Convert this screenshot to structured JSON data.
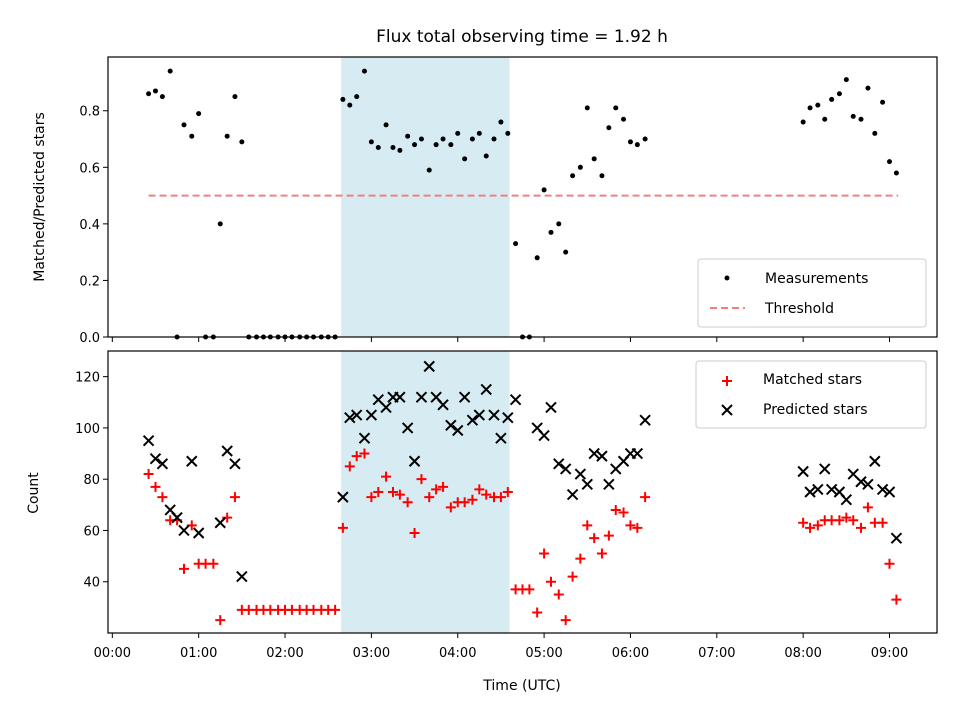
{
  "chart_data": [
    {
      "type": "scatter",
      "title": "Flux total observing time = 1.92 h",
      "ylabel": "Matched/Predicted stars",
      "xlabel": "",
      "xlim": [
        -0.05,
        9.55
      ],
      "ylim": [
        0,
        0.99
      ],
      "yticks": [
        0.0,
        0.2,
        0.4,
        0.6,
        0.8
      ],
      "ytick_labels": [
        "0.0",
        "0.2",
        "0.4",
        "0.6",
        "0.8"
      ],
      "shaded_span": [
        2.65,
        4.6
      ],
      "grid": false,
      "legend": "bottom-right",
      "threshold": {
        "name": "Threshold",
        "value": 0.5,
        "x_range": [
          0.42,
          9.1
        ],
        "color": "#f08080"
      },
      "series": [
        {
          "name": "Measurements",
          "color": "#000000",
          "points": [
            [
              0.42,
              0.86
            ],
            [
              0.5,
              0.87
            ],
            [
              0.58,
              0.85
            ],
            [
              0.67,
              0.94
            ],
            [
              0.75,
              0.0
            ],
            [
              0.83,
              0.75
            ],
            [
              0.92,
              0.71
            ],
            [
              1.0,
              0.79
            ],
            [
              1.08,
              0.0
            ],
            [
              1.17,
              0.0
            ],
            [
              1.25,
              0.4
            ],
            [
              1.33,
              0.71
            ],
            [
              1.42,
              0.85
            ],
            [
              1.5,
              0.69
            ],
            [
              1.58,
              0.0
            ],
            [
              1.67,
              0.0
            ],
            [
              1.75,
              0.0
            ],
            [
              1.83,
              0.0
            ],
            [
              1.92,
              0.0
            ],
            [
              2.0,
              0.0
            ],
            [
              2.08,
              0.0
            ],
            [
              2.17,
              0.0
            ],
            [
              2.25,
              0.0
            ],
            [
              2.33,
              0.0
            ],
            [
              2.42,
              0.0
            ],
            [
              2.5,
              0.0
            ],
            [
              2.58,
              0.0
            ],
            [
              2.67,
              0.84
            ],
            [
              2.75,
              0.82
            ],
            [
              2.83,
              0.85
            ],
            [
              2.92,
              0.94
            ],
            [
              3.0,
              0.69
            ],
            [
              3.08,
              0.67
            ],
            [
              3.17,
              0.75
            ],
            [
              3.25,
              0.67
            ],
            [
              3.33,
              0.66
            ],
            [
              3.42,
              0.71
            ],
            [
              3.5,
              0.68
            ],
            [
              3.58,
              0.7
            ],
            [
              3.67,
              0.59
            ],
            [
              3.75,
              0.68
            ],
            [
              3.83,
              0.7
            ],
            [
              3.92,
              0.68
            ],
            [
              4.0,
              0.72
            ],
            [
              4.08,
              0.63
            ],
            [
              4.17,
              0.7
            ],
            [
              4.25,
              0.72
            ],
            [
              4.33,
              0.64
            ],
            [
              4.42,
              0.7
            ],
            [
              4.5,
              0.76
            ],
            [
              4.58,
              0.72
            ],
            [
              4.67,
              0.33
            ],
            [
              4.75,
              0.0
            ],
            [
              4.83,
              0.0
            ],
            [
              4.92,
              0.28
            ],
            [
              5.0,
              0.52
            ],
            [
              5.08,
              0.37
            ],
            [
              5.17,
              0.4
            ],
            [
              5.25,
              0.3
            ],
            [
              5.33,
              0.57
            ],
            [
              5.42,
              0.6
            ],
            [
              5.5,
              0.81
            ],
            [
              5.58,
              0.63
            ],
            [
              5.67,
              0.57
            ],
            [
              5.75,
              0.74
            ],
            [
              5.83,
              0.81
            ],
            [
              5.92,
              0.77
            ],
            [
              6.0,
              0.69
            ],
            [
              6.08,
              0.68
            ],
            [
              6.17,
              0.7
            ],
            [
              8.0,
              0.76
            ],
            [
              8.08,
              0.81
            ],
            [
              8.17,
              0.82
            ],
            [
              8.25,
              0.77
            ],
            [
              8.33,
              0.84
            ],
            [
              8.42,
              0.86
            ],
            [
              8.5,
              0.91
            ],
            [
              8.58,
              0.78
            ],
            [
              8.67,
              0.77
            ],
            [
              8.75,
              0.88
            ],
            [
              8.83,
              0.72
            ],
            [
              8.92,
              0.83
            ],
            [
              9.0,
              0.62
            ],
            [
              9.08,
              0.58
            ]
          ]
        }
      ]
    },
    {
      "type": "scatter",
      "title": "",
      "ylabel": "Count",
      "xlabel": "Time (UTC)",
      "xlim": [
        -0.05,
        9.55
      ],
      "ylim": [
        20,
        130
      ],
      "yticks": [
        40,
        60,
        80,
        100,
        120
      ],
      "ytick_labels": [
        "40",
        "60",
        "80",
        "100",
        "120"
      ],
      "xticks": [
        0,
        1,
        2,
        3,
        4,
        5,
        6,
        7,
        8,
        9
      ],
      "xtick_labels": [
        "00:00",
        "01:00",
        "02:00",
        "03:00",
        "04:00",
        "05:00",
        "06:00",
        "07:00",
        "08:00",
        "09:00"
      ],
      "shaded_span": [
        2.65,
        4.6
      ],
      "grid": false,
      "legend": "top-right",
      "series": [
        {
          "name": "Matched stars",
          "color": "#ff0000",
          "marker": "+",
          "points": [
            [
              0.42,
              82
            ],
            [
              0.5,
              77
            ],
            [
              0.58,
              73
            ],
            [
              0.67,
              64
            ],
            [
              0.75,
              64
            ],
            [
              0.83,
              45
            ],
            [
              0.92,
              62
            ],
            [
              1.0,
              47
            ],
            [
              1.08,
              47
            ],
            [
              1.17,
              47
            ],
            [
              1.25,
              25
            ],
            [
              1.33,
              65
            ],
            [
              1.42,
              73
            ],
            [
              1.5,
              29
            ],
            [
              1.58,
              29
            ],
            [
              1.67,
              29
            ],
            [
              1.75,
              29
            ],
            [
              1.83,
              29
            ],
            [
              1.92,
              29
            ],
            [
              2.0,
              29
            ],
            [
              2.08,
              29
            ],
            [
              2.17,
              29
            ],
            [
              2.25,
              29
            ],
            [
              2.33,
              29
            ],
            [
              2.42,
              29
            ],
            [
              2.5,
              29
            ],
            [
              2.58,
              29
            ],
            [
              2.67,
              61
            ],
            [
              2.75,
              85
            ],
            [
              2.83,
              89
            ],
            [
              2.92,
              90
            ],
            [
              3.0,
              73
            ],
            [
              3.08,
              75
            ],
            [
              3.17,
              81
            ],
            [
              3.25,
              75
            ],
            [
              3.33,
              74
            ],
            [
              3.42,
              71
            ],
            [
              3.5,
              59
            ],
            [
              3.58,
              80
            ],
            [
              3.67,
              73
            ],
            [
              3.75,
              76
            ],
            [
              3.83,
              77
            ],
            [
              3.92,
              69
            ],
            [
              4.0,
              71
            ],
            [
              4.08,
              71
            ],
            [
              4.17,
              72
            ],
            [
              4.25,
              76
            ],
            [
              4.33,
              74
            ],
            [
              4.42,
              73
            ],
            [
              4.5,
              73
            ],
            [
              4.58,
              75
            ],
            [
              4.67,
              37
            ],
            [
              4.75,
              37
            ],
            [
              4.83,
              37
            ],
            [
              4.92,
              28
            ],
            [
              5.0,
              51
            ],
            [
              5.08,
              40
            ],
            [
              5.17,
              35
            ],
            [
              5.25,
              25
            ],
            [
              5.33,
              42
            ],
            [
              5.42,
              49
            ],
            [
              5.5,
              62
            ],
            [
              5.58,
              57
            ],
            [
              5.67,
              51
            ],
            [
              5.75,
              58
            ],
            [
              5.83,
              68
            ],
            [
              5.92,
              67
            ],
            [
              6.0,
              62
            ],
            [
              6.08,
              61
            ],
            [
              6.17,
              73
            ],
            [
              8.0,
              63
            ],
            [
              8.08,
              61
            ],
            [
              8.17,
              62
            ],
            [
              8.25,
              64
            ],
            [
              8.33,
              64
            ],
            [
              8.42,
              64
            ],
            [
              8.5,
              65
            ],
            [
              8.58,
              64
            ],
            [
              8.67,
              61
            ],
            [
              8.75,
              69
            ],
            [
              8.83,
              63
            ],
            [
              8.92,
              63
            ],
            [
              9.0,
              47
            ],
            [
              9.08,
              33
            ]
          ]
        },
        {
          "name": "Predicted stars",
          "color": "#000000",
          "marker": "x",
          "points": [
            [
              0.42,
              95
            ],
            [
              0.5,
              88
            ],
            [
              0.58,
              86
            ],
            [
              0.67,
              68
            ],
            [
              0.75,
              65
            ],
            [
              0.83,
              60
            ],
            [
              0.92,
              87
            ],
            [
              1.0,
              59
            ],
            [
              1.25,
              63
            ],
            [
              1.33,
              91
            ],
            [
              1.42,
              86
            ],
            [
              1.5,
              42
            ],
            [
              2.67,
              73
            ],
            [
              2.75,
              104
            ],
            [
              2.83,
              105
            ],
            [
              2.92,
              96
            ],
            [
              3.0,
              105
            ],
            [
              3.08,
              111
            ],
            [
              3.17,
              108
            ],
            [
              3.25,
              112
            ],
            [
              3.33,
              112
            ],
            [
              3.42,
              100
            ],
            [
              3.5,
              87
            ],
            [
              3.58,
              112
            ],
            [
              3.67,
              124
            ],
            [
              3.75,
              112
            ],
            [
              3.83,
              109
            ],
            [
              3.92,
              101
            ],
            [
              4.0,
              99
            ],
            [
              4.08,
              112
            ],
            [
              4.17,
              103
            ],
            [
              4.25,
              105
            ],
            [
              4.33,
              115
            ],
            [
              4.42,
              105
            ],
            [
              4.5,
              96
            ],
            [
              4.58,
              104
            ],
            [
              4.67,
              111
            ],
            [
              4.92,
              100
            ],
            [
              5.0,
              97
            ],
            [
              5.08,
              108
            ],
            [
              5.17,
              86
            ],
            [
              5.25,
              84
            ],
            [
              5.33,
              74
            ],
            [
              5.42,
              82
            ],
            [
              5.5,
              78
            ],
            [
              5.58,
              90
            ],
            [
              5.67,
              89
            ],
            [
              5.75,
              78
            ],
            [
              5.83,
              84
            ],
            [
              5.92,
              87
            ],
            [
              6.0,
              90
            ],
            [
              6.08,
              90
            ],
            [
              6.17,
              103
            ],
            [
              8.0,
              83
            ],
            [
              8.08,
              75
            ],
            [
              8.17,
              76
            ],
            [
              8.25,
              84
            ],
            [
              8.33,
              76
            ],
            [
              8.42,
              75
            ],
            [
              8.5,
              72
            ],
            [
              8.58,
              82
            ],
            [
              8.67,
              79
            ],
            [
              8.75,
              78
            ],
            [
              8.83,
              87
            ],
            [
              8.92,
              76
            ],
            [
              9.0,
              75
            ],
            [
              9.08,
              57
            ]
          ]
        }
      ]
    }
  ]
}
